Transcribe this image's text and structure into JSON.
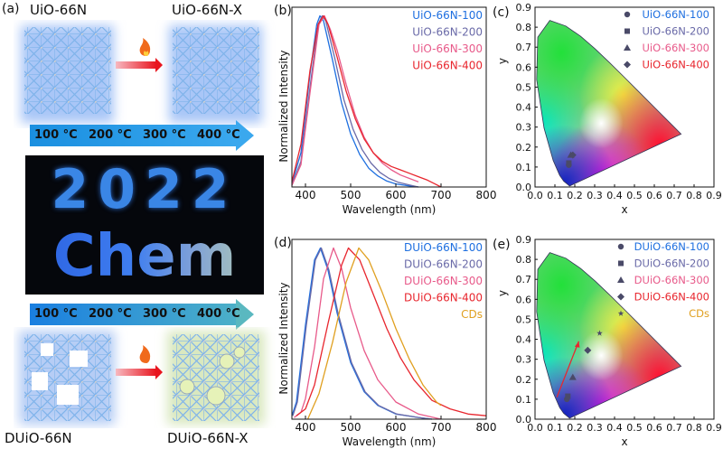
{
  "panel_a": {
    "label": "(a)",
    "top_left_title": "UiO-66N",
    "top_right_title": "UiO-66N-X",
    "bottom_left_title": "DUiO-66N",
    "bottom_right_title": "DUiO-66N-X",
    "temperatures": [
      "100 °C",
      "200 °C",
      "300 °C",
      "400 °C"
    ],
    "photo_text": [
      "2022",
      "Chem"
    ],
    "colors": {
      "arrow_blue": "#2a9be8",
      "heat_arrow": "#e8202a",
      "photo_text": "#3a7fe0"
    }
  },
  "chart_data": [
    {
      "panel": "(b)",
      "type": "line",
      "xlabel": "Wavelength (nm)",
      "ylabel": "Normalized Intensity",
      "xlim": [
        370,
        800
      ],
      "ylim": [
        0,
        1.05
      ],
      "xticks": [
        400,
        500,
        600,
        700,
        800
      ],
      "legend": "top-right",
      "grid": false,
      "series": [
        {
          "name": "UiO-66N-100",
          "color": "#1e6fe0",
          "points": [
            [
              370,
              0.02
            ],
            [
              390,
              0.2
            ],
            [
              410,
              0.66
            ],
            [
              425,
              0.95
            ],
            [
              432,
              1
            ],
            [
              440,
              0.97
            ],
            [
              460,
              0.74
            ],
            [
              480,
              0.49
            ],
            [
              500,
              0.31
            ],
            [
              520,
              0.19
            ],
            [
              540,
              0.11
            ],
            [
              560,
              0.065
            ],
            [
              580,
              0.035
            ],
            [
              600,
              0.018
            ],
            [
              625,
              0.008
            ],
            [
              650,
              0
            ]
          ]
        },
        {
          "name": "UiO-66N-200",
          "color": "#6a6aa8",
          "points": [
            [
              370,
              0.01
            ],
            [
              390,
              0.15
            ],
            [
              410,
              0.58
            ],
            [
              428,
              0.95
            ],
            [
              437,
              1
            ],
            [
              445,
              0.97
            ],
            [
              465,
              0.75
            ],
            [
              485,
              0.51
            ],
            [
              505,
              0.34
            ],
            [
              525,
              0.22
            ],
            [
              545,
              0.14
            ],
            [
              565,
              0.085
            ],
            [
              585,
              0.05
            ],
            [
              605,
              0.028
            ],
            [
              630,
              0.012
            ],
            [
              650,
              0
            ]
          ]
        },
        {
          "name": "UiO-66N-300",
          "color": "#e85a8a",
          "points": [
            [
              370,
              0.01
            ],
            [
              390,
              0.13
            ],
            [
              410,
              0.55
            ],
            [
              430,
              0.95
            ],
            [
              442,
              1
            ],
            [
              455,
              0.92
            ],
            [
              470,
              0.8
            ],
            [
              490,
              0.6
            ],
            [
              510,
              0.42
            ],
            [
              530,
              0.29
            ],
            [
              550,
              0.2
            ],
            [
              570,
              0.14
            ],
            [
              590,
              0.1
            ],
            [
              610,
              0.07
            ],
            [
              630,
              0.05
            ],
            [
              650,
              0.03
            ]
          ]
        },
        {
          "name": "UiO-66N-400",
          "color": "#e8262e",
          "points": [
            [
              370,
              0.03
            ],
            [
              390,
              0.25
            ],
            [
              410,
              0.68
            ],
            [
              428,
              0.95
            ],
            [
              440,
              1
            ],
            [
              450,
              0.95
            ],
            [
              470,
              0.76
            ],
            [
              490,
              0.56
            ],
            [
              510,
              0.4
            ],
            [
              530,
              0.28
            ],
            [
              550,
              0.2
            ],
            [
              570,
              0.15
            ],
            [
              590,
              0.12
            ],
            [
              610,
              0.1
            ],
            [
              630,
              0.08
            ],
            [
              650,
              0.06
            ],
            [
              670,
              0.04
            ],
            [
              685,
              0.02
            ],
            [
              700,
              0
            ]
          ]
        }
      ]
    },
    {
      "panel": "(c)",
      "type": "scatter",
      "xlabel": "x",
      "ylabel": "y",
      "xlim": [
        0,
        0.9
      ],
      "ylim": [
        0,
        0.9
      ],
      "xticks": [
        0.0,
        0.1,
        0.2,
        0.3,
        0.4,
        0.5,
        0.6,
        0.7,
        0.8,
        0.9
      ],
      "yticks": [
        0.0,
        0.1,
        0.2,
        0.3,
        0.4,
        0.5,
        0.6,
        0.7,
        0.8,
        0.9
      ],
      "legend": "top-right",
      "background": "CIE 1931 chromaticity diagram",
      "series": [
        {
          "name": "UiO-66N-100",
          "marker": "circle",
          "color": "#1e6fe0",
          "x": 0.17,
          "y": 0.11
        },
        {
          "name": "UiO-66N-200",
          "marker": "square",
          "color": "#6a6aa8",
          "x": 0.17,
          "y": 0.12
        },
        {
          "name": "UiO-66N-300",
          "marker": "triangle",
          "color": "#e85a8a",
          "x": 0.18,
          "y": 0.16
        },
        {
          "name": "UiO-66N-400",
          "marker": "diamond",
          "color": "#e8262e",
          "x": 0.19,
          "y": 0.16
        }
      ]
    },
    {
      "panel": "(d)",
      "type": "line",
      "xlabel": "Wavelength (nm)",
      "ylabel": "Normalized Intensity",
      "xlim": [
        370,
        800
      ],
      "ylim": [
        0,
        1.05
      ],
      "xticks": [
        400,
        500,
        600,
        700,
        800
      ],
      "legend": "top-right",
      "grid": false,
      "series": [
        {
          "name": "DUiO-66N-100",
          "color": "#1e6fe0",
          "points": [
            [
              370,
              0.02
            ],
            [
              380,
              0.1
            ],
            [
              400,
              0.55
            ],
            [
              420,
              0.93
            ],
            [
              433,
              1
            ],
            [
              450,
              0.87
            ],
            [
              470,
              0.62
            ],
            [
              500,
              0.33
            ],
            [
              530,
              0.16
            ],
            [
              560,
              0.08
            ],
            [
              600,
              0.03
            ],
            [
              650,
              0.01
            ],
            [
              680,
              0
            ]
          ]
        },
        {
          "name": "DUiO-66N-200",
          "color": "#6a6aa8",
          "points": [
            [
              372,
              0.02
            ],
            [
              382,
              0.1
            ],
            [
              402,
              0.55
            ],
            [
              422,
              0.93
            ],
            [
              435,
              1
            ],
            [
              452,
              0.87
            ],
            [
              472,
              0.62
            ],
            [
              502,
              0.33
            ],
            [
              532,
              0.16
            ],
            [
              562,
              0.08
            ],
            [
              602,
              0.03
            ],
            [
              650,
              0.01
            ],
            [
              680,
              0
            ]
          ]
        },
        {
          "name": "DUiO-66N-300",
          "color": "#e85a8a",
          "points": [
            [
              375,
              0.01
            ],
            [
              390,
              0.04
            ],
            [
              400,
              0.12
            ],
            [
              420,
              0.42
            ],
            [
              440,
              0.82
            ],
            [
              462,
              1
            ],
            [
              480,
              0.88
            ],
            [
              500,
              0.65
            ],
            [
              530,
              0.4
            ],
            [
              560,
              0.23
            ],
            [
              600,
              0.1
            ],
            [
              650,
              0.03
            ],
            [
              700,
              0
            ]
          ]
        },
        {
          "name": "DUiO-66N-400",
          "color": "#e8262e",
          "points": [
            [
              380,
              0.02
            ],
            [
              400,
              0.06
            ],
            [
              420,
              0.2
            ],
            [
              450,
              0.56
            ],
            [
              480,
              0.9
            ],
            [
              495,
              1
            ],
            [
              520,
              0.93
            ],
            [
              550,
              0.73
            ],
            [
              580,
              0.53
            ],
            [
              610,
              0.36
            ],
            [
              640,
              0.23
            ],
            [
              680,
              0.11
            ],
            [
              720,
              0.06
            ],
            [
              760,
              0.03
            ],
            [
              800,
              0.02
            ]
          ]
        },
        {
          "name": "CDs",
          "color": "#e0a020",
          "points": [
            [
              405,
              0
            ],
            [
              430,
              0.15
            ],
            [
              460,
              0.45
            ],
            [
              490,
              0.8
            ],
            [
              518,
              1
            ],
            [
              540,
              0.93
            ],
            [
              570,
              0.74
            ],
            [
              600,
              0.53
            ],
            [
              630,
              0.35
            ],
            [
              660,
              0.2
            ],
            [
              690,
              0.1
            ],
            [
              700,
              0.08
            ]
          ]
        }
      ]
    },
    {
      "panel": "(e)",
      "type": "scatter",
      "xlabel": "x",
      "ylabel": "y",
      "xlim": [
        0,
        0.9
      ],
      "ylim": [
        0,
        0.9
      ],
      "xticks": [
        0.0,
        0.1,
        0.2,
        0.3,
        0.4,
        0.5,
        0.6,
        0.7,
        0.8,
        0.9
      ],
      "yticks": [
        0.0,
        0.1,
        0.2,
        0.3,
        0.4,
        0.5,
        0.6,
        0.7,
        0.8,
        0.9
      ],
      "legend": "top-right",
      "background": "CIE 1931 chromaticity diagram",
      "arrow": {
        "from": [
          0.11,
          0.11
        ],
        "to": [
          0.22,
          0.39
        ],
        "color": "#e8262e"
      },
      "series": [
        {
          "name": "DUiO-66N-100",
          "marker": "circle",
          "color": "#1e6fe0",
          "x": 0.16,
          "y": 0.1
        },
        {
          "name": "DUiO-66N-200",
          "marker": "square",
          "color": "#6a6aa8",
          "x": 0.165,
          "y": 0.115
        },
        {
          "name": "DUiO-66N-300",
          "marker": "triangle",
          "color": "#e85a8a",
          "x": 0.19,
          "y": 0.21
        },
        {
          "name": "DUiO-66N-400",
          "marker": "diamond",
          "color": "#e8262e",
          "x": 0.265,
          "y": 0.345
        },
        {
          "name": "CDs",
          "marker": "star",
          "color": "#e0a020",
          "x": 0.325,
          "y": 0.43
        }
      ]
    }
  ]
}
